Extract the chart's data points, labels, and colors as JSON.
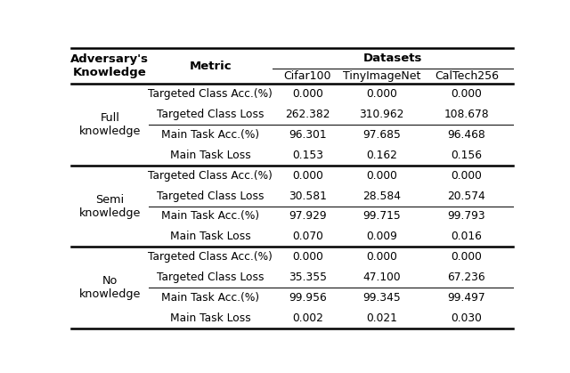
{
  "groups": [
    {
      "label": "Full\nknowledge",
      "rows": [
        [
          "Targeted Class Acc.(%)",
          "0.000",
          "0.000",
          "0.000"
        ],
        [
          "Targeted Class Loss",
          "262.382",
          "310.962",
          "108.678"
        ],
        [
          "Main Task Acc.(%)",
          "96.301",
          "97.685",
          "96.468"
        ],
        [
          "Main Task Loss",
          "0.153",
          "0.162",
          "0.156"
        ]
      ]
    },
    {
      "label": "Semi\nknowledge",
      "rows": [
        [
          "Targeted Class Acc.(%)",
          "0.000",
          "0.000",
          "0.000"
        ],
        [
          "Targeted Class Loss",
          "30.581",
          "28.584",
          "20.574"
        ],
        [
          "Main Task Acc.(%)",
          "97.929",
          "99.715",
          "99.793"
        ],
        [
          "Main Task Loss",
          "0.070",
          "0.009",
          "0.016"
        ]
      ]
    },
    {
      "label": "No\nknowledge",
      "rows": [
        [
          "Targeted Class Acc.(%)",
          "0.000",
          "0.000",
          "0.000"
        ],
        [
          "Targeted Class Loss",
          "35.355",
          "47.100",
          "67.236"
        ],
        [
          "Main Task Acc.(%)",
          "99.956",
          "99.345",
          "99.497"
        ],
        [
          "Main Task Loss",
          "0.002",
          "0.021",
          "0.030"
        ]
      ]
    }
  ],
  "bg_color": "#ffffff",
  "header_fontsize": 9.5,
  "cell_fontsize": 8.8,
  "group_label_fontsize": 9.2
}
